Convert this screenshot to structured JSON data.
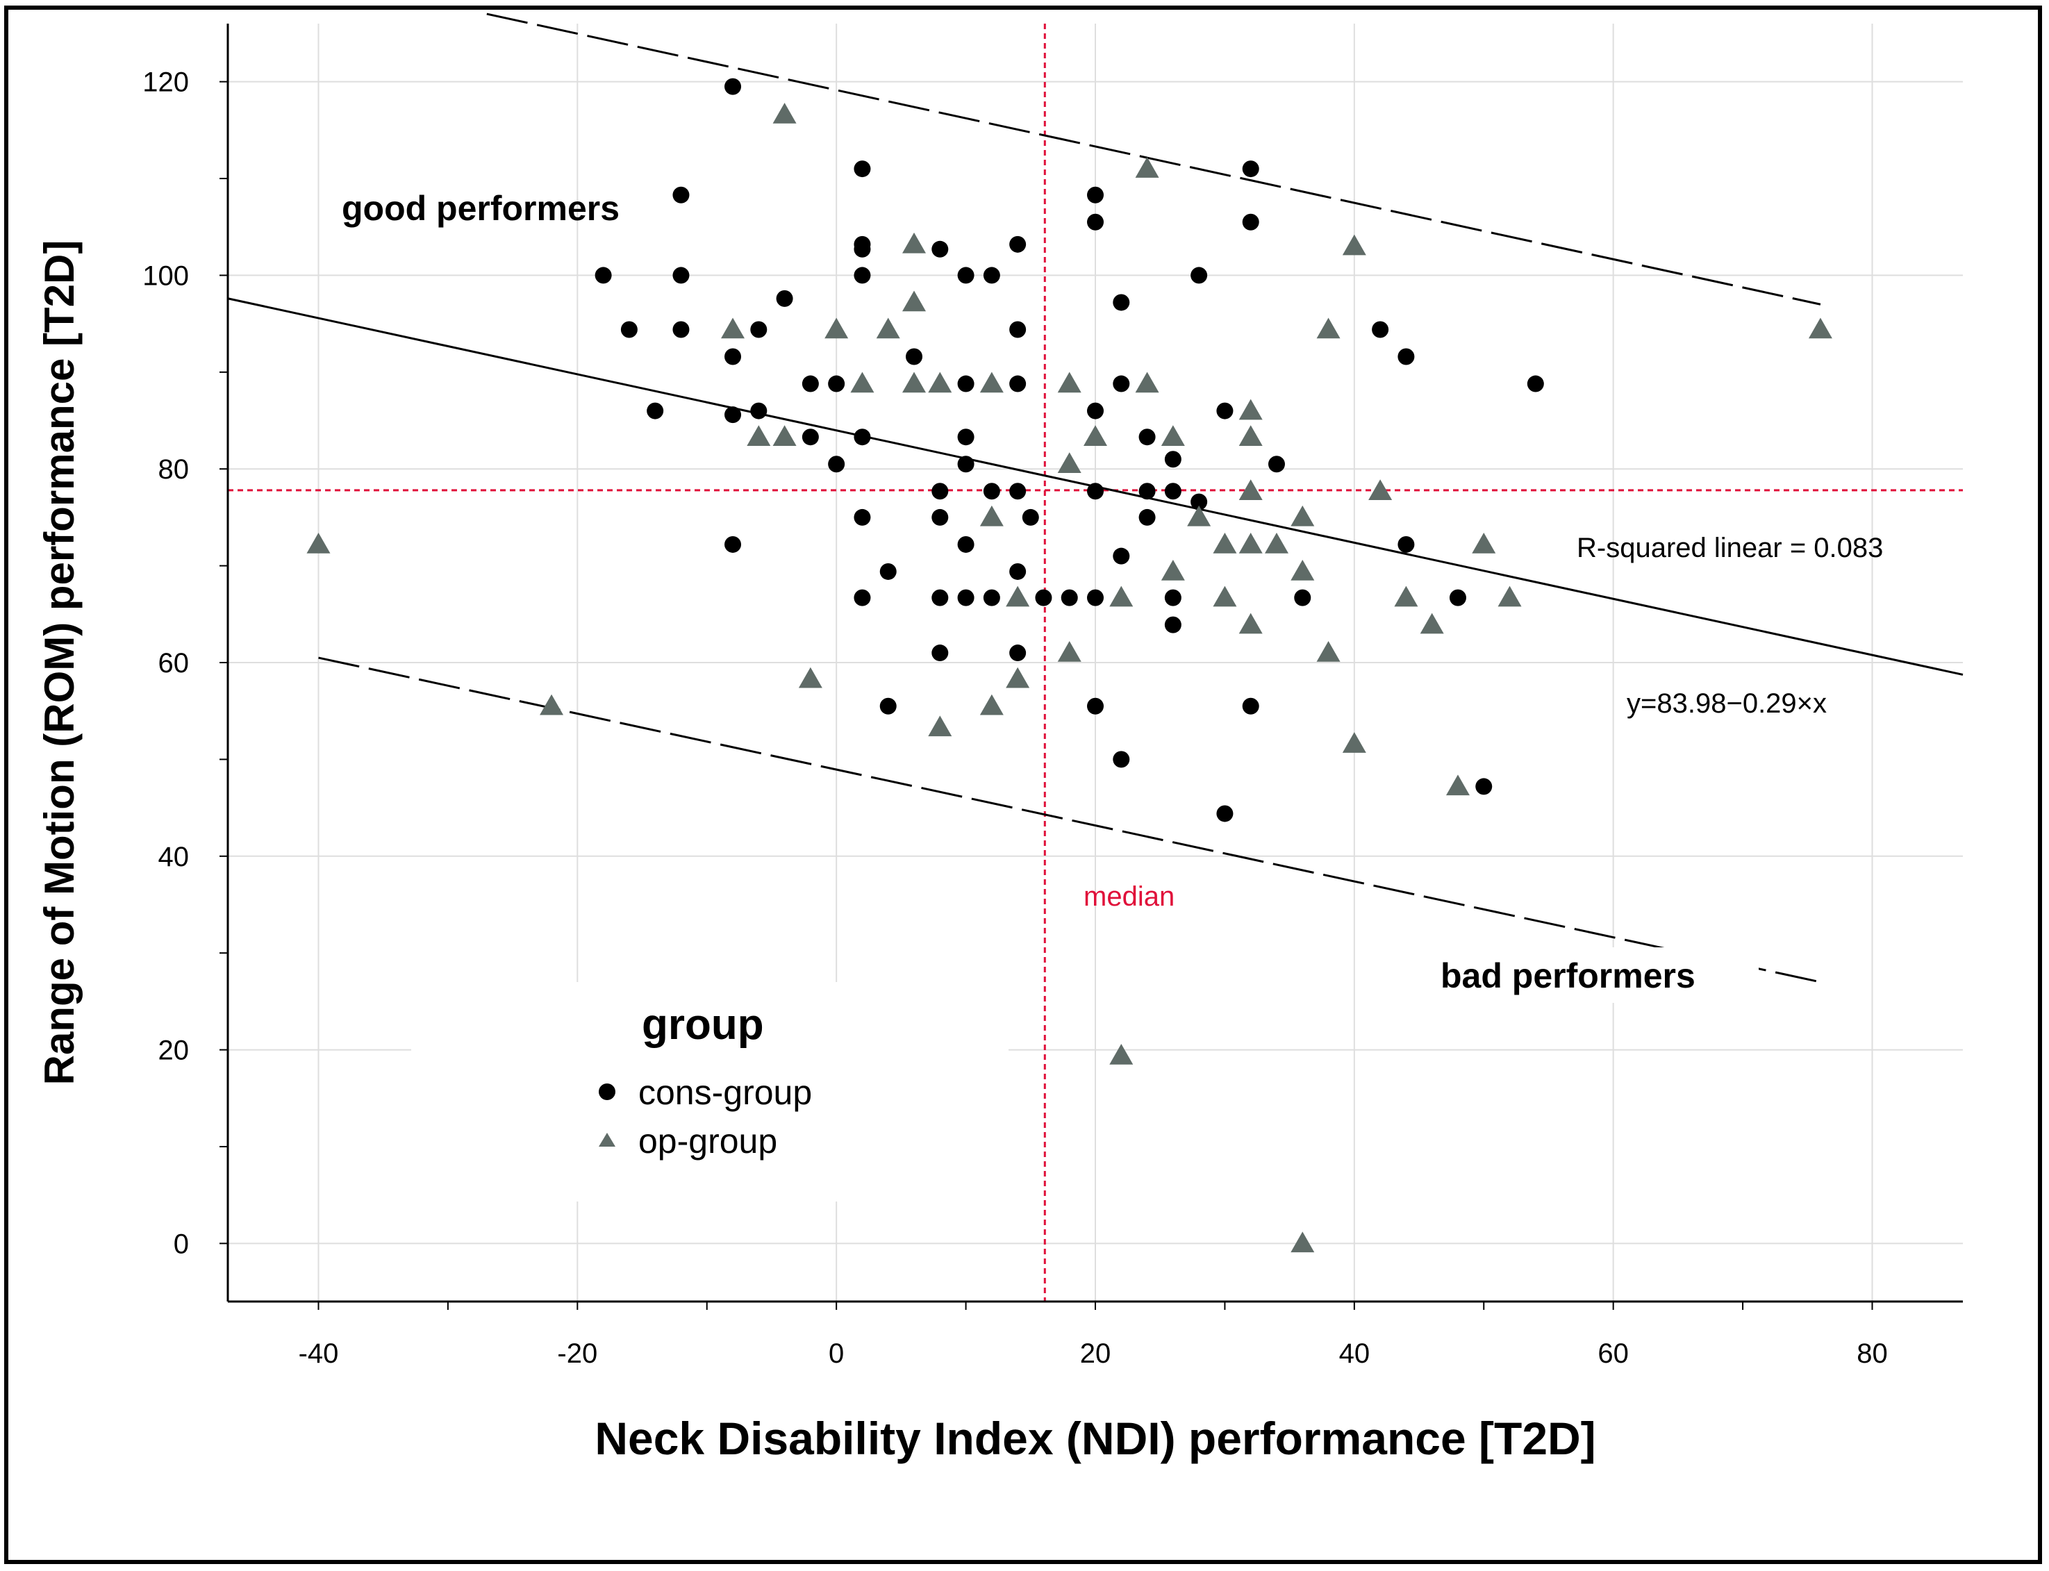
{
  "chart_data": {
    "type": "scatter",
    "title": "",
    "xlabel": "Neck Disability Index (NDI) performance [T2D]",
    "ylabel": "Range of Motion (ROM) performance [T2D]",
    "xlim": [
      -47,
      87
    ],
    "ylim": [
      -6,
      126
    ],
    "x_ticks": [
      -40,
      -20,
      0,
      20,
      40,
      60,
      80
    ],
    "x_tick_labels": [
      "-40",
      "-20",
      "0",
      "20",
      "40",
      "60",
      "80"
    ],
    "y_ticks": [
      0,
      20,
      40,
      60,
      80,
      100,
      120
    ],
    "y_tick_labels": [
      "0",
      "20",
      "40",
      "60",
      "80",
      "100",
      "120"
    ],
    "grid": true,
    "legend": {
      "title": "group",
      "placement": "lower-left",
      "entries": [
        {
          "label": "cons-group",
          "marker": "circle",
          "color": "#000000"
        },
        {
          "label": "op-group",
          "marker": "triangle",
          "color": "#5f6b67"
        }
      ]
    },
    "series": [
      {
        "name": "cons-group",
        "marker": "circle",
        "color": "#000000",
        "points": [
          [
            -8,
            119.5
          ],
          [
            -12,
            108.3
          ],
          [
            -18,
            100
          ],
          [
            -12,
            100
          ],
          [
            -16,
            94.4
          ],
          [
            -12,
            94.4
          ],
          [
            -6,
            94.4
          ],
          [
            -4,
            97.6
          ],
          [
            -8,
            91.6
          ],
          [
            -8,
            85.6
          ],
          [
            -14,
            86
          ],
          [
            -6,
            86
          ],
          [
            -2,
            88.8
          ],
          [
            0,
            88.8
          ],
          [
            -2,
            83.3
          ],
          [
            0,
            80.5
          ],
          [
            2,
            111
          ],
          [
            2,
            103.2
          ],
          [
            2,
            102.7
          ],
          [
            2,
            100
          ],
          [
            2,
            83.3
          ],
          [
            2,
            75
          ],
          [
            2,
            66.7
          ],
          [
            4,
            69.4
          ],
          [
            4,
            55.5
          ],
          [
            6,
            91.6
          ],
          [
            8,
            102.7
          ],
          [
            8,
            77.7
          ],
          [
            8,
            75
          ],
          [
            8,
            66.7
          ],
          [
            8,
            61
          ],
          [
            10,
            100
          ],
          [
            10,
            88.8
          ],
          [
            10,
            83.3
          ],
          [
            10,
            80.5
          ],
          [
            10,
            72.2
          ],
          [
            10,
            66.7
          ],
          [
            12,
            100
          ],
          [
            12,
            77.7
          ],
          [
            12,
            66.7
          ],
          [
            14,
            103.2
          ],
          [
            14,
            94.4
          ],
          [
            14,
            88.8
          ],
          [
            14,
            77.7
          ],
          [
            14,
            69.4
          ],
          [
            14,
            61
          ],
          [
            15,
            75
          ],
          [
            16,
            66.7
          ],
          [
            18,
            66.7
          ],
          [
            20,
            108.3
          ],
          [
            20,
            105.5
          ],
          [
            20,
            86
          ],
          [
            20,
            77.7
          ],
          [
            20,
            66.7
          ],
          [
            20,
            55.5
          ],
          [
            22,
            97.2
          ],
          [
            22,
            88.8
          ],
          [
            22,
            71
          ],
          [
            22,
            50
          ],
          [
            24,
            83.3
          ],
          [
            24,
            77.7
          ],
          [
            24,
            75
          ],
          [
            26,
            81
          ],
          [
            26,
            77.7
          ],
          [
            26,
            66.7
          ],
          [
            26,
            63.9
          ],
          [
            28,
            100
          ],
          [
            28,
            76.6
          ],
          [
            30,
            86
          ],
          [
            30,
            44.4
          ],
          [
            32,
            111
          ],
          [
            32,
            105.5
          ],
          [
            32,
            55.5
          ],
          [
            34,
            80.5
          ],
          [
            36,
            66.7
          ],
          [
            42,
            94.4
          ],
          [
            44,
            91.6
          ],
          [
            44,
            72.2
          ],
          [
            48,
            66.7
          ],
          [
            50,
            47.2
          ],
          [
            54,
            88.8
          ],
          [
            -8,
            72.2
          ]
        ]
      },
      {
        "name": "op-group",
        "marker": "triangle",
        "color": "#5f6b67",
        "points": [
          [
            -40,
            72.2
          ],
          [
            -22,
            55.5
          ],
          [
            -8,
            94.4
          ],
          [
            -6,
            83.3
          ],
          [
            -4,
            116.6
          ],
          [
            -4,
            83.3
          ],
          [
            -2,
            58.3
          ],
          [
            0,
            94.4
          ],
          [
            2,
            88.8
          ],
          [
            4,
            94.4
          ],
          [
            6,
            103.2
          ],
          [
            6,
            97.2
          ],
          [
            6,
            88.8
          ],
          [
            8,
            88.8
          ],
          [
            8,
            53.3
          ],
          [
            12,
            88.8
          ],
          [
            12,
            75
          ],
          [
            12,
            55.5
          ],
          [
            14,
            66.7
          ],
          [
            14,
            58.3
          ],
          [
            18,
            88.8
          ],
          [
            18,
            80.5
          ],
          [
            18,
            61
          ],
          [
            20,
            83.3
          ],
          [
            22,
            66.7
          ],
          [
            22,
            19.4
          ],
          [
            24,
            111
          ],
          [
            24,
            88.8
          ],
          [
            26,
            83.3
          ],
          [
            26,
            69.4
          ],
          [
            28,
            75
          ],
          [
            30,
            72.2
          ],
          [
            30,
            66.7
          ],
          [
            32,
            86
          ],
          [
            32,
            83.3
          ],
          [
            32,
            77.7
          ],
          [
            32,
            72.2
          ],
          [
            32,
            63.9
          ],
          [
            34,
            72.2
          ],
          [
            36,
            75
          ],
          [
            36,
            69.4
          ],
          [
            36,
            0
          ],
          [
            38,
            94.4
          ],
          [
            38,
            61
          ],
          [
            40,
            103
          ],
          [
            40,
            51.6
          ],
          [
            42,
            77.7
          ],
          [
            44,
            66.7
          ],
          [
            46,
            63.9
          ],
          [
            48,
            47.2
          ],
          [
            50,
            72.2
          ],
          [
            52,
            66.7
          ],
          [
            76,
            94.4
          ]
        ]
      }
    ],
    "fit_line": {
      "label": "y=83.98−0.29×x",
      "intercept": 83.98,
      "slope": -0.29,
      "x_range": [
        -47,
        87
      ]
    },
    "upper_bound_line": {
      "x_range": [
        -27,
        76
      ],
      "y_range": [
        127,
        97
      ]
    },
    "lower_bound_line": {
      "x_range": [
        -40,
        76
      ],
      "y_range": [
        60.5,
        27
      ]
    },
    "median_x": 16.1,
    "median_y": 77.8,
    "annotations": {
      "r_squared": "R-squared linear = 0.083",
      "equation": "y=83.98−0.29×x",
      "median": "median",
      "good": "good performers",
      "bad": "bad performers"
    }
  }
}
